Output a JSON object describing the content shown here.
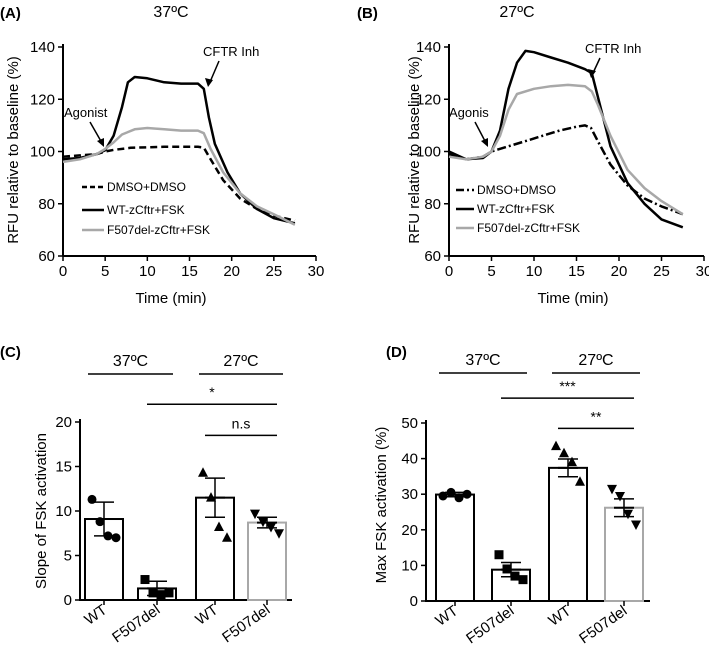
{
  "chart_data": [
    {
      "panel": "(A)",
      "type": "line",
      "title": "37ºC",
      "xlabel": "Time (min)",
      "ylabel": "RFU relative to baseline (%)",
      "xlim": [
        0,
        30
      ],
      "ylim": [
        60,
        140
      ],
      "xticks": [
        0,
        5,
        10,
        15,
        20,
        25,
        30
      ],
      "yticks": [
        60,
        80,
        100,
        120,
        140
      ],
      "legend_position": "bottom-left",
      "annotations": [
        {
          "text": "Agonist",
          "x": 5,
          "y": 101
        },
        {
          "text": "CFTR Inh",
          "x": 16.7,
          "y": 125
        }
      ],
      "series": [
        {
          "name": "DMSO+DMSO",
          "color": "#000000",
          "dash": "dashed",
          "points": [
            [
              0,
              98
            ],
            [
              2,
              98.5
            ],
            [
              4,
              99
            ],
            [
              5,
              100
            ],
            [
              6,
              100.6
            ],
            [
              8,
              101.4
            ],
            [
              10,
              101.6
            ],
            [
              12,
              101.8
            ],
            [
              14,
              101.8
            ],
            [
              16,
              101.8
            ],
            [
              16.7,
              101.5
            ],
            [
              17.5,
              97
            ],
            [
              19,
              89
            ],
            [
              21,
              82
            ],
            [
              23,
              78
            ],
            [
              25,
              75.5
            ],
            [
              27.5,
              73.5
            ]
          ]
        },
        {
          "name": "WT-zCftr+FSK",
          "color": "#000000",
          "dash": "solid",
          "points": [
            [
              0,
              97
            ],
            [
              2,
              97.5
            ],
            [
              4,
              99
            ],
            [
              5,
              100.5
            ],
            [
              6,
              106
            ],
            [
              7,
              117
            ],
            [
              7.7,
              126.5
            ],
            [
              8.5,
              128.5
            ],
            [
              10,
              128
            ],
            [
              12,
              126.5
            ],
            [
              14,
              126
            ],
            [
              16,
              126
            ],
            [
              16.7,
              124
            ],
            [
              17.3,
              113
            ],
            [
              18,
              103
            ],
            [
              19.5,
              92
            ],
            [
              21,
              84
            ],
            [
              23,
              78
            ],
            [
              25,
              74.5
            ],
            [
              27.5,
              72.5
            ]
          ]
        },
        {
          "name": "F507del-zCftr+FSK",
          "color": "#a8a8a8",
          "dash": "solid",
          "points": [
            [
              0,
              96
            ],
            [
              2,
              97
            ],
            [
              4,
              99
            ],
            [
              5,
              101
            ],
            [
              6,
              103.5
            ],
            [
              7,
              106.5
            ],
            [
              8.5,
              108.5
            ],
            [
              10,
              109
            ],
            [
              12,
              108.5
            ],
            [
              14,
              108
            ],
            [
              16,
              108
            ],
            [
              16.7,
              107
            ],
            [
              17.5,
              101
            ],
            [
              19,
              92
            ],
            [
              21,
              84
            ],
            [
              23,
              79
            ],
            [
              25,
              76
            ],
            [
              27.5,
              72
            ]
          ]
        }
      ]
    },
    {
      "panel": "(B)",
      "type": "line",
      "title": "27ºC",
      "xlabel": "Time (min)",
      "ylabel": "RFU relative to baseline (%)",
      "xlim": [
        0,
        30
      ],
      "ylim": [
        60,
        140
      ],
      "xticks": [
        0,
        5,
        10,
        15,
        20,
        25,
        30
      ],
      "yticks": [
        60,
        80,
        100,
        120,
        140
      ],
      "legend_position": "bottom-left",
      "annotations": [
        {
          "text": "Agonis",
          "x": 5,
          "y": 101
        },
        {
          "text": "CFTR Inh",
          "x": 17,
          "y": 130
        }
      ],
      "series": [
        {
          "name": "DMSO+DMSO",
          "color": "#000000",
          "dash": "dashdot",
          "points": [
            [
              0,
              99
            ],
            [
              2,
              97
            ],
            [
              4,
              98
            ],
            [
              5,
              100
            ],
            [
              7,
              102
            ],
            [
              9,
              104
            ],
            [
              11,
              106
            ],
            [
              13,
              108
            ],
            [
              15,
              109.5
            ],
            [
              16,
              110
            ],
            [
              16.7,
              109
            ],
            [
              17.5,
              104
            ],
            [
              19,
              95
            ],
            [
              21,
              87
            ],
            [
              23,
              82
            ],
            [
              25,
              79
            ],
            [
              27.5,
              76
            ]
          ]
        },
        {
          "name": "WT-zCftr+FSK",
          "color": "#000000",
          "dash": "solid",
          "points": [
            [
              0,
              100
            ],
            [
              2,
              97
            ],
            [
              4,
              97.5
            ],
            [
              5,
              100
            ],
            [
              6,
              108
            ],
            [
              7,
              124
            ],
            [
              8,
              134
            ],
            [
              9,
              138.5
            ],
            [
              10,
              138
            ],
            [
              12,
              136
            ],
            [
              14,
              134
            ],
            [
              16,
              131.5
            ],
            [
              16.8,
              130
            ],
            [
              17.5,
              121
            ],
            [
              19,
              102
            ],
            [
              21,
              88
            ],
            [
              23,
              80
            ],
            [
              25,
              74
            ],
            [
              27.5,
              71
            ]
          ]
        },
        {
          "name": "F507del-zCftr+FSK",
          "color": "#a8a8a8",
          "dash": "solid",
          "points": [
            [
              0,
              98
            ],
            [
              2,
              97
            ],
            [
              4,
              98
            ],
            [
              5,
              100
            ],
            [
              6,
              106
            ],
            [
              7,
              116
            ],
            [
              8,
              122
            ],
            [
              10,
              124
            ],
            [
              12,
              125
            ],
            [
              14,
              125.5
            ],
            [
              16,
              125
            ],
            [
              16.8,
              123
            ],
            [
              17.5,
              118
            ],
            [
              19,
              106
            ],
            [
              21,
              93
            ],
            [
              23,
              86
            ],
            [
              25,
              81
            ],
            [
              27.5,
              76
            ]
          ]
        }
      ]
    },
    {
      "panel": "(C)",
      "type": "bar",
      "ylabel": "Slope of FSK activation",
      "ylim": [
        0,
        20
      ],
      "yticks": [
        0,
        5,
        10,
        15,
        20
      ],
      "categories": [
        "WT",
        "F507del",
        "WT",
        "F507del"
      ],
      "values": [
        9.1,
        1.3,
        11.5,
        8.7
      ],
      "errors": [
        1.9,
        0.8,
        2.2,
        0.6
      ],
      "bar_colors": [
        "#000000",
        "#000000",
        "#000000",
        "#a8a8a8"
      ],
      "markers": [
        "circle",
        "square",
        "triangle",
        "triangle-down"
      ],
      "points": [
        [
          11.3,
          8.8,
          7.2,
          7.0
        ],
        [
          2.3,
          0.8,
          0.6,
          0.8
        ],
        [
          14.3,
          11.5,
          8.2,
          7.0
        ],
        [
          9.7,
          8.8,
          8.2,
          7.5
        ]
      ],
      "groups": [
        {
          "label": "37ºC",
          "bars": [
            0,
            1
          ]
        },
        {
          "label": "27ºC",
          "bars": [
            2,
            3
          ]
        }
      ],
      "significance": [
        {
          "text": "*",
          "bars": [
            1,
            3
          ],
          "level": 22
        },
        {
          "text": "n.s",
          "bars": [
            2,
            3
          ],
          "level": 18.5
        }
      ]
    },
    {
      "panel": "(D)",
      "type": "bar",
      "ylabel": "Max FSK activation (%)",
      "ylim": [
        0,
        50
      ],
      "yticks": [
        0,
        10,
        20,
        30,
        40,
        50
      ],
      "categories": [
        "WT",
        "F507del",
        "WT",
        "F507del"
      ],
      "values": [
        29.9,
        8.8,
        37.4,
        26.2
      ],
      "errors": [
        0.6,
        2.0,
        2.5,
        2.5
      ],
      "bar_colors": [
        "#000000",
        "#000000",
        "#000000",
        "#a8a8a8"
      ],
      "markers": [
        "circle",
        "square",
        "triangle",
        "triangle-down"
      ],
      "points": [
        [
          29.5,
          30.5,
          29.0,
          30.0
        ],
        [
          13.0,
          9.0,
          7.0,
          6.0
        ],
        [
          43.5,
          41.5,
          39.0,
          33.5
        ],
        [
          31.5,
          29.5,
          24.5,
          21.5
        ]
      ],
      "groups": [
        {
          "label": "37ºC",
          "bars": [
            0,
            1
          ]
        },
        {
          "label": "27ºC",
          "bars": [
            2,
            3
          ]
        }
      ],
      "significance": [
        {
          "text": "***",
          "bars": [
            1,
            3
          ],
          "level": 57
        },
        {
          "text": "**",
          "bars": [
            2,
            3
          ],
          "level": 48.5
        }
      ]
    }
  ]
}
